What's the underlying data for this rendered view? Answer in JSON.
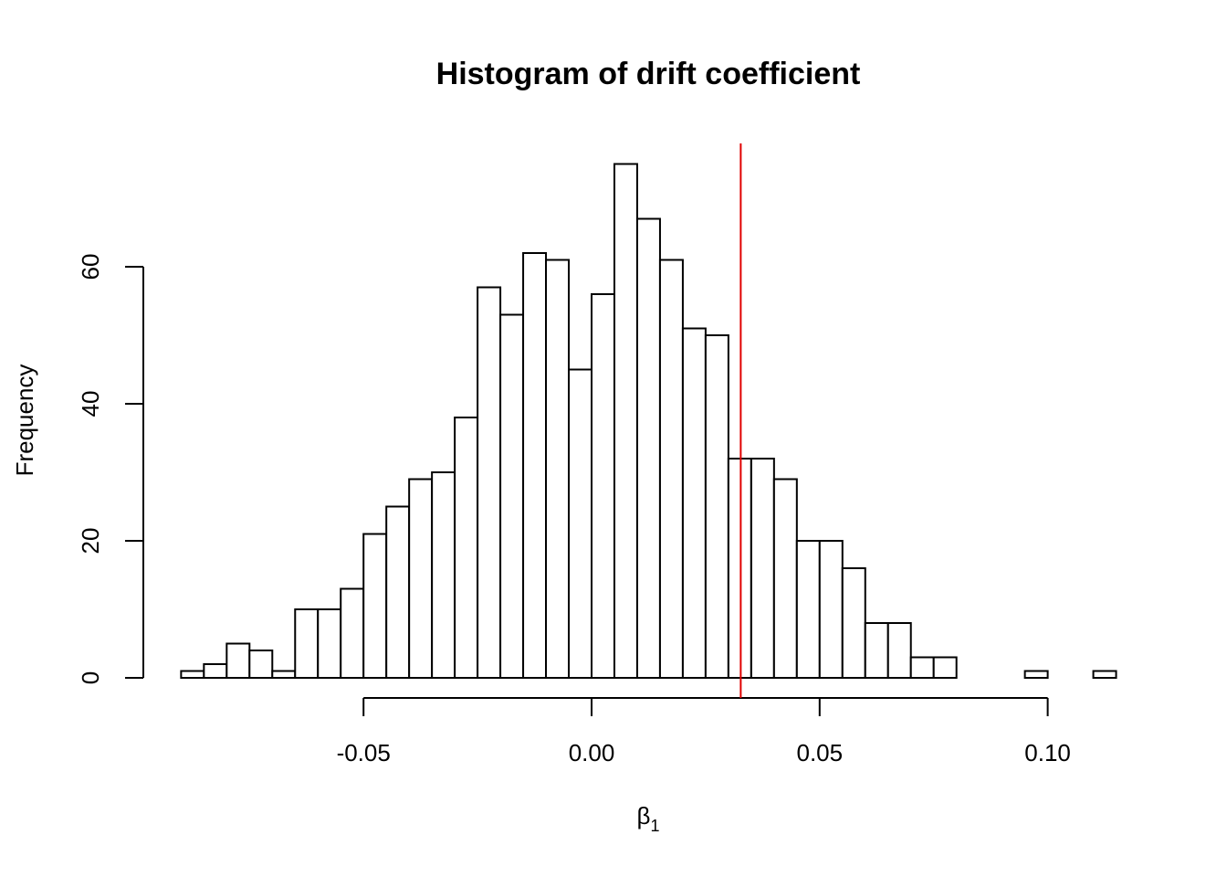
{
  "chart_data": {
    "type": "bar",
    "title": "Histogram of drift coefficient",
    "xlabel": "β₁",
    "xlabel_base": "β",
    "xlabel_sub": "1",
    "ylabel": "Frequency",
    "bin_width": 0.005,
    "bin_start": -0.09,
    "values": [
      1,
      2,
      5,
      4,
      1,
      10,
      10,
      13,
      21,
      25,
      29,
      30,
      38,
      57,
      53,
      62,
      61,
      45,
      56,
      75,
      67,
      61,
      51,
      50,
      32,
      32,
      29,
      20,
      20,
      16,
      8,
      8,
      3,
      3,
      0,
      0,
      0,
      1,
      0,
      0,
      1
    ],
    "xticks": [
      -0.05,
      0.0,
      0.05,
      0.1
    ],
    "xtick_labels": [
      "-0.05",
      "0.00",
      "0.05",
      "0.10"
    ],
    "yticks": [
      0,
      20,
      40,
      60
    ],
    "ytick_labels": [
      "0",
      "20",
      "40",
      "60"
    ],
    "xlim": [
      -0.09,
      0.115
    ],
    "ylim": [
      0,
      75
    ],
    "reference_line": {
      "x": 0.0327,
      "color": "#e00000"
    },
    "grid": false,
    "legend": "none"
  }
}
